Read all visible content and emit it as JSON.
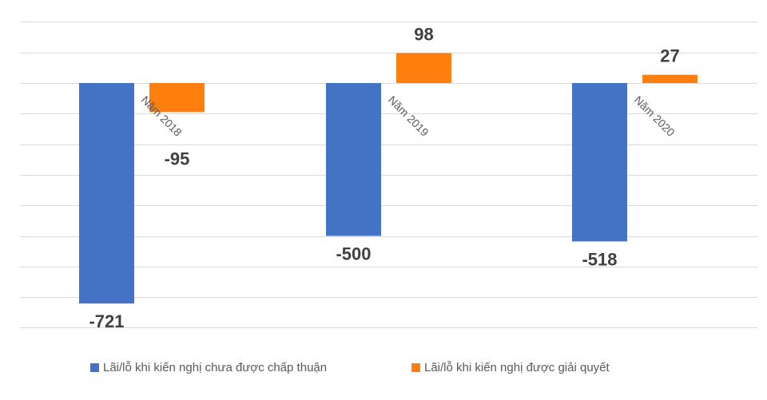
{
  "chart_data": {
    "type": "bar",
    "categories": [
      "Năm 2018",
      "Năm 2019",
      "Năm 2020"
    ],
    "series": [
      {
        "name": "Lãi/lỗ khi kiến nghị chưa được chấp thuận",
        "values": [
          -721,
          -500,
          -518
        ],
        "color": "#4472c4"
      },
      {
        "name": "Lãi/lỗ khi kiến nghị được giải quyết",
        "values": [
          -95,
          98,
          27
        ],
        "color": "#ff7f0e"
      }
    ],
    "data_labels": [
      [
        "-721",
        "-500",
        "-518"
      ],
      [
        "-95",
        "98",
        "27"
      ]
    ],
    "ylim": [
      -800,
      200
    ],
    "grid_step": 100,
    "grid": true,
    "legend_position": "bottom"
  }
}
